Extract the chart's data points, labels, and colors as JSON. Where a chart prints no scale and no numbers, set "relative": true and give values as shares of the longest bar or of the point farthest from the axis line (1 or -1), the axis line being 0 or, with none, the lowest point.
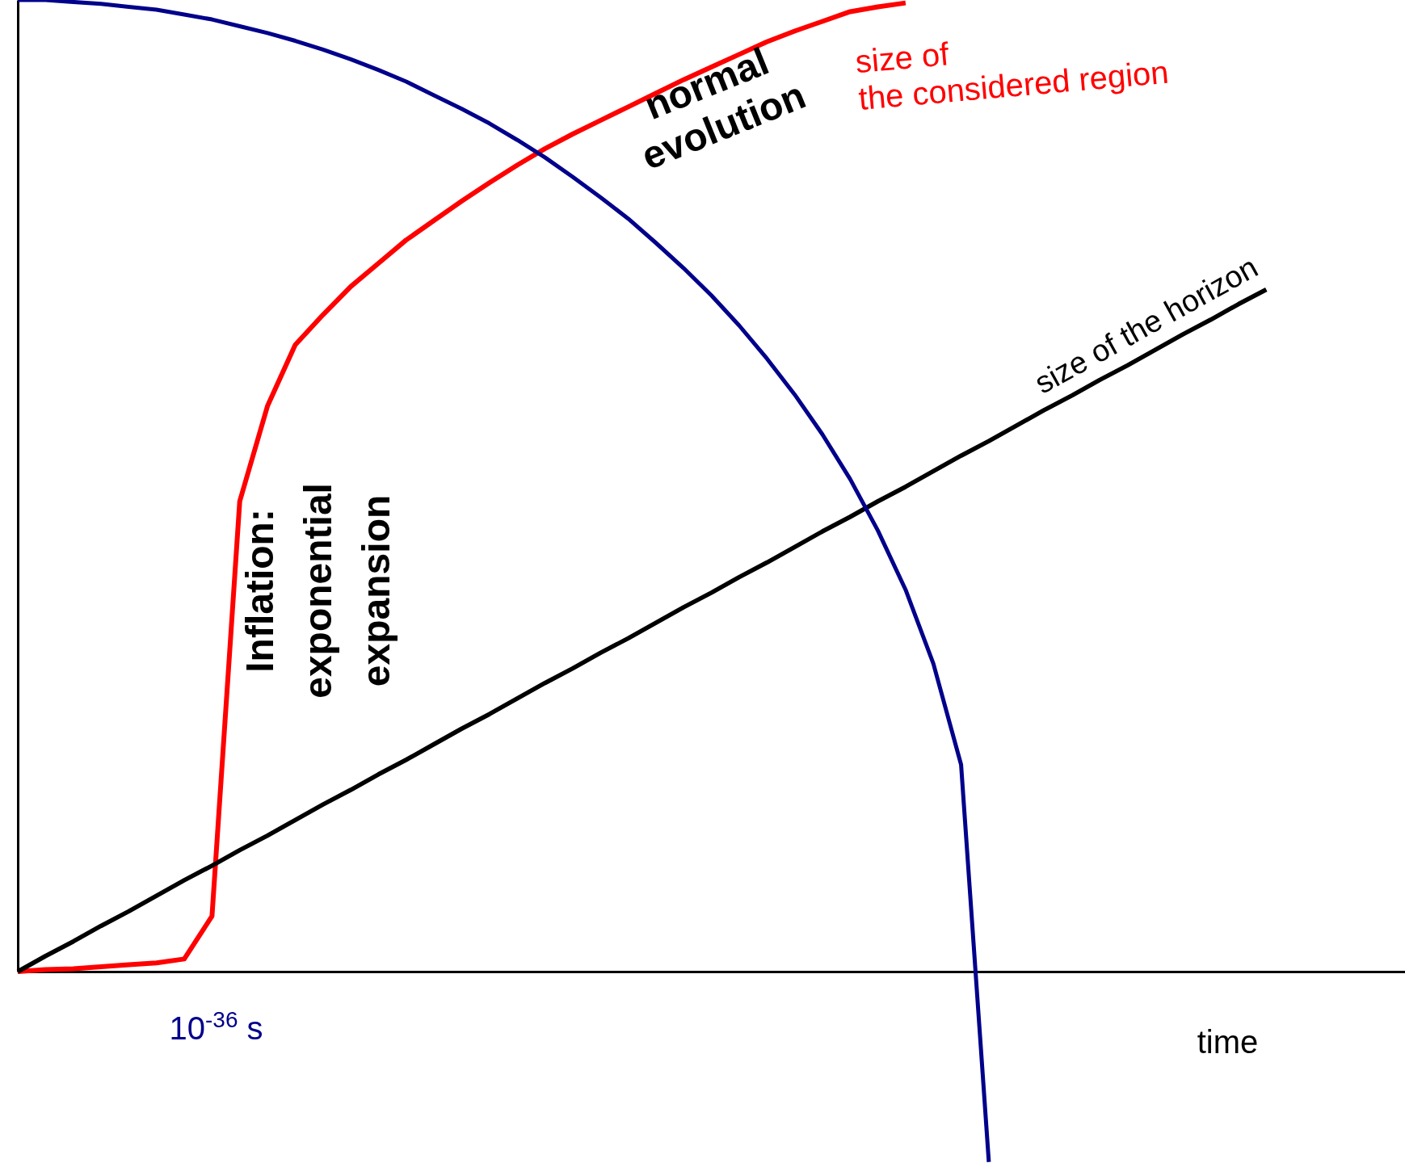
{
  "chart_data": {
    "type": "line",
    "relative": true,
    "xlabel": "time",
    "categories": [
      null,
      null,
      null,
      null,
      null,
      null,
      null,
      null,
      null,
      null,
      null,
      null,
      null,
      null,
      null,
      null,
      null,
      null,
      null,
      null,
      null,
      null,
      null,
      null,
      null,
      null,
      null,
      null,
      null,
      null,
      null,
      null,
      null,
      null,
      null,
      null,
      null,
      null,
      null,
      null,
      null,
      null,
      null,
      null,
      null,
      null,
      null,
      null,
      null,
      null,
      null
    ],
    "series": [
      {
        "name": "size of the considered region",
        "color": "#ff0000",
        "values": [
          0,
          0.002,
          0.003,
          0.005,
          0.007,
          0.009,
          0.013,
          0.057,
          0.484,
          0.582,
          0.645,
          0.676,
          0.705,
          0.729,
          0.753,
          0.773,
          0.793,
          0.812,
          0.83,
          0.847,
          0.862,
          0.876,
          0.89,
          0.904,
          0.918,
          0.931,
          0.944,
          0.957,
          0.968,
          0.978,
          0.988,
          0.993,
          0.997,
          null,
          null,
          null,
          null,
          null,
          null,
          null,
          null,
          null,
          null,
          null,
          null,
          null,
          null,
          null,
          null,
          null,
          null
        ]
      },
      {
        "name": "size of the horizon",
        "color": "#000000",
        "values": [
          0,
          0.016,
          0.031,
          0.047,
          0.062,
          0.078,
          0.094,
          0.109,
          0.125,
          0.14,
          0.156,
          0.172,
          0.187,
          0.203,
          0.218,
          0.234,
          0.25,
          0.265,
          0.281,
          0.297,
          0.312,
          0.328,
          0.343,
          0.359,
          0.375,
          0.39,
          0.406,
          0.421,
          0.437,
          0.453,
          0.468,
          0.484,
          0.499,
          0.515,
          0.531,
          0.546,
          0.562,
          0.578,
          0.593,
          0.609,
          0.624,
          0.64,
          0.656,
          0.671,
          0.687,
          0.702,
          null,
          null,
          null,
          null,
          null
        ]
      },
      {
        "color": "#00008b",
        "values": [
          1,
          1,
          0.998,
          0.996,
          0.993,
          0.99,
          0.985,
          0.98,
          0.973,
          0.966,
          0.958,
          0.949,
          0.939,
          0.928,
          0.916,
          0.902,
          0.888,
          0.873,
          0.856,
          0.838,
          0.818,
          0.797,
          0.775,
          0.75,
          0.724,
          0.696,
          0.665,
          0.631,
          0.594,
          0.553,
          0.507,
          0.454,
          0.393,
          0.317,
          0.213,
          -0.196,
          null,
          null,
          null,
          null,
          null,
          null,
          null,
          null,
          null,
          null,
          null,
          null,
          null,
          null,
          null
        ]
      }
    ],
    "annotations": [
      "normal evolution",
      "Inflation: exponential expansion",
      "10$^{-36}$ s"
    ]
  }
}
